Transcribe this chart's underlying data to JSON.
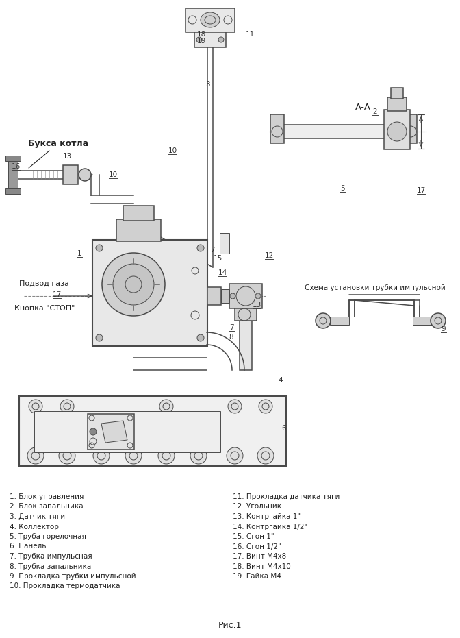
{
  "bg_color": "#ffffff",
  "line_color": "#4a4a4a",
  "dark_color": "#222222",
  "gray1": "#d0d0d0",
  "gray2": "#e8e8e8",
  "gray3": "#bbbbbb",
  "fig_caption": "Рис.1",
  "label_buksa": "Букса котла",
  "label_podvod": "Подвод газа",
  "label_knopka": "Кнопка \"СТОП\"",
  "label_aa": "А-А",
  "label_schema": "Схема установки трубки импульсной",
  "legend_left": [
    "1. Блок управления",
    "2. Блок запальника",
    "3. Датчик тяги",
    "4. Коллектор",
    "5. Труба горелочная",
    "6. Панель",
    "7. Трубка импульсная",
    "8. Трубка запальника",
    "9. Прокладка трубки импульсной",
    "10. Прокладка термодатчика"
  ],
  "legend_right": [
    "11. Прокладка датчика тяги",
    "12. Угольник",
    "13. Контргайка 1\"",
    "14. Контргайка 1/2\"",
    "15. Сгон 1\"",
    "16. Сгон 1/2\"",
    "17. Винт М4х8",
    "18. Винт М4х10",
    "19. Гайка М4"
  ]
}
